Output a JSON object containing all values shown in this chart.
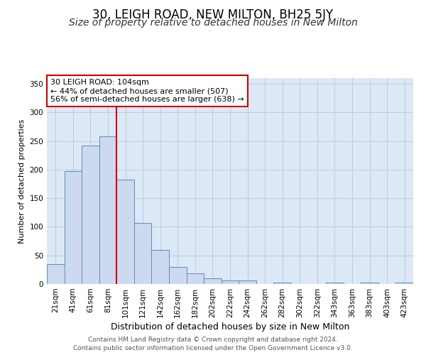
{
  "title": "30, LEIGH ROAD, NEW MILTON, BH25 5JY",
  "subtitle": "Size of property relative to detached houses in New Milton",
  "xlabel": "Distribution of detached houses by size in New Milton",
  "ylabel": "Number of detached properties",
  "bar_labels": [
    "21sqm",
    "41sqm",
    "61sqm",
    "81sqm",
    "101sqm",
    "121sqm",
    "142sqm",
    "162sqm",
    "182sqm",
    "202sqm",
    "222sqm",
    "242sqm",
    "262sqm",
    "282sqm",
    "302sqm",
    "322sqm",
    "343sqm",
    "363sqm",
    "383sqm",
    "403sqm",
    "423sqm"
  ],
  "bar_values": [
    35,
    198,
    242,
    258,
    183,
    107,
    60,
    30,
    19,
    10,
    6,
    6,
    0,
    3,
    0,
    0,
    2,
    0,
    2,
    0,
    2
  ],
  "bar_color": "#ccd9ee",
  "bar_edge_color": "#5b8ec4",
  "vline_index": 3.5,
  "vline_color": "#cc0000",
  "annotation_text": "30 LEIGH ROAD: 104sqm\n← 44% of detached houses are smaller (507)\n56% of semi-detached houses are larger (638) →",
  "annotation_box_facecolor": "#ffffff",
  "annotation_box_edgecolor": "#cc0000",
  "ylim": [
    0,
    360
  ],
  "yticks": [
    0,
    50,
    100,
    150,
    200,
    250,
    300,
    350
  ],
  "grid_color": "#b8ccdf",
  "background_color": "#dce8f5",
  "footer_line1": "Contains HM Land Registry data © Crown copyright and database right 2024.",
  "footer_line2": "Contains public sector information licensed under the Open Government Licence v3.0.",
  "title_fontsize": 12,
  "subtitle_fontsize": 10,
  "xlabel_fontsize": 9,
  "ylabel_fontsize": 8,
  "tick_fontsize": 7.5,
  "annotation_fontsize": 8,
  "footer_fontsize": 6.5
}
